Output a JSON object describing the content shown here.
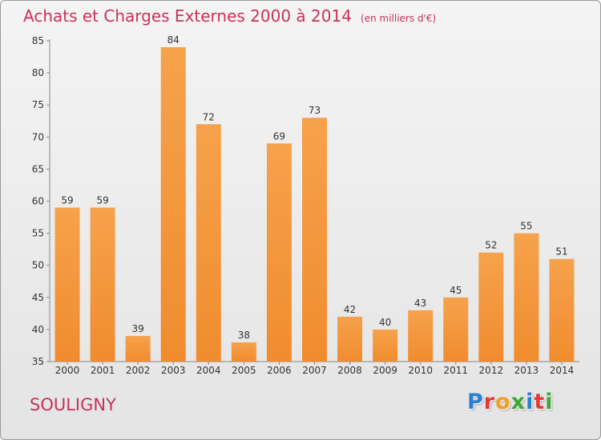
{
  "chart_data": {
    "type": "bar",
    "title": "Achats et Charges Externes 2000 à 2014",
    "subtitle": "(en milliers d'€)",
    "categories": [
      "2000",
      "2001",
      "2002",
      "2003",
      "2004",
      "2005",
      "2006",
      "2007",
      "2008",
      "2009",
      "2010",
      "2011",
      "2012",
      "2013",
      "2014"
    ],
    "values": [
      59,
      59,
      39,
      84,
      72,
      38,
      69,
      73,
      42,
      40,
      43,
      45,
      52,
      55,
      51
    ],
    "ylim": [
      35,
      85
    ],
    "yticks": [
      35,
      40,
      45,
      50,
      55,
      60,
      65,
      70,
      75,
      80,
      85
    ],
    "grid": false,
    "bar_color": "#f08c2e"
  },
  "footer": {
    "commune": "SOULIGNY",
    "logo_letters": [
      "P",
      "r",
      "o",
      "x",
      "i",
      "t",
      "i"
    ],
    "logo_colors": [
      "#2a7fd0",
      "#e23a3a",
      "#f0a020",
      "#39a935",
      "#2a7fd0",
      "#e23a3a",
      "#39a935"
    ]
  }
}
